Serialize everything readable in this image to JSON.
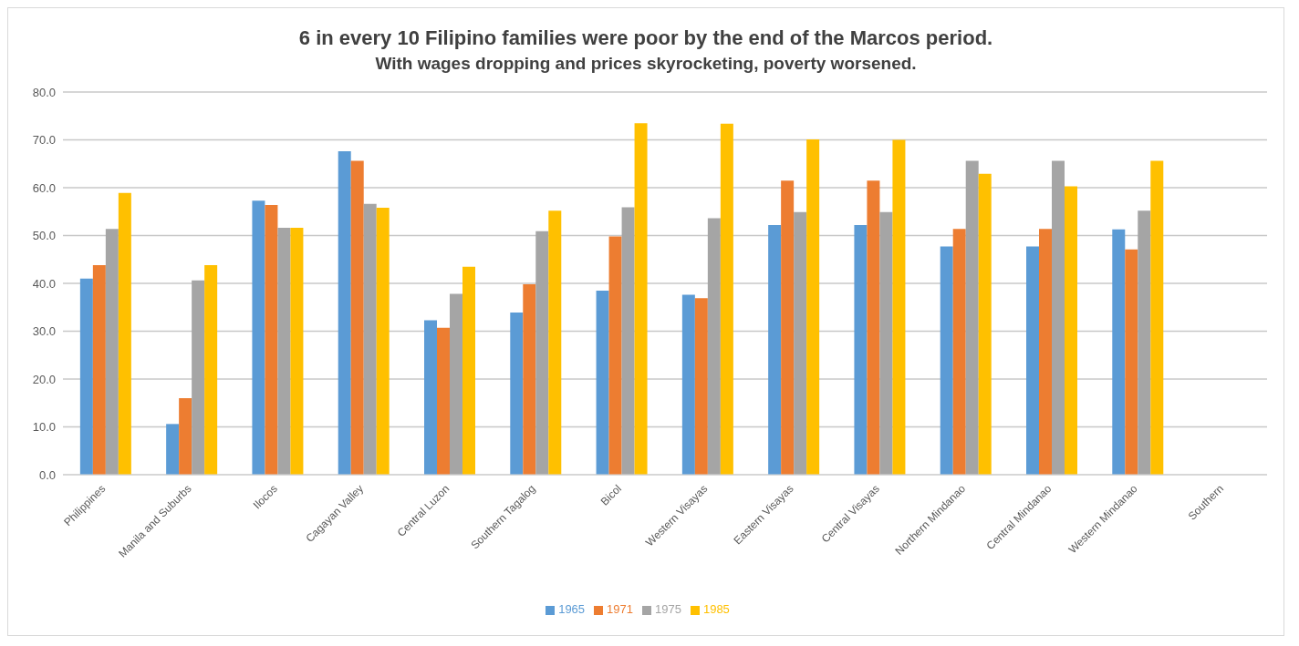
{
  "chart_data": {
    "type": "bar",
    "title": "6 in every 10 Filipino families were poor by the end of the Marcos period.",
    "subtitle": "With wages dropping and prices skyrocketing, poverty worsened.",
    "categories": [
      "Philippines",
      "Manila and Suburbs",
      "Ilocos",
      "Cagayan Valley",
      "Central Luzon",
      "Southern Tagalog",
      "Bicol",
      "Western Visayas",
      "Eastern Visayas",
      "Central Visayas",
      "Northern Mindanao",
      "Central Mindanao",
      "Western Mindanao",
      "Southern"
    ],
    "series": [
      {
        "name": "1965",
        "color": "#5b9bd5",
        "values": [
          41.0,
          10.6,
          57.3,
          67.6,
          32.3,
          33.9,
          38.5,
          37.6,
          52.2,
          52.2,
          47.7,
          47.7,
          51.3,
          null
        ]
      },
      {
        "name": "1971",
        "color": "#ed7d31",
        "values": [
          43.8,
          16.0,
          56.4,
          65.6,
          30.7,
          39.8,
          49.8,
          36.9,
          61.5,
          61.5,
          51.4,
          51.4,
          47.1,
          null
        ]
      },
      {
        "name": "1975",
        "color": "#a5a5a5",
        "values": [
          51.4,
          40.6,
          51.6,
          56.6,
          37.8,
          50.9,
          55.9,
          53.6,
          54.9,
          54.9,
          65.6,
          65.6,
          55.2,
          null
        ]
      },
      {
        "name": "1985",
        "color": "#ffc000",
        "values": [
          58.9,
          43.8,
          51.6,
          55.8,
          43.5,
          55.2,
          73.5,
          73.4,
          70.1,
          70.0,
          62.9,
          60.3,
          65.6,
          null
        ]
      }
    ],
    "ylim": [
      0,
      80
    ],
    "yticks": [
      {
        "value": 0,
        "label": "0.0"
      },
      {
        "value": 10,
        "label": "10.0"
      },
      {
        "value": 20,
        "label": "20.0"
      },
      {
        "value": 30,
        "label": "30.0"
      },
      {
        "value": 40,
        "label": "40.0"
      },
      {
        "value": 50,
        "label": "50.0"
      },
      {
        "value": 60,
        "label": "60.0"
      },
      {
        "value": 70,
        "label": "70.0"
      },
      {
        "value": 80,
        "label": "80.0"
      }
    ],
    "grid": "y",
    "legend": "bottom"
  }
}
